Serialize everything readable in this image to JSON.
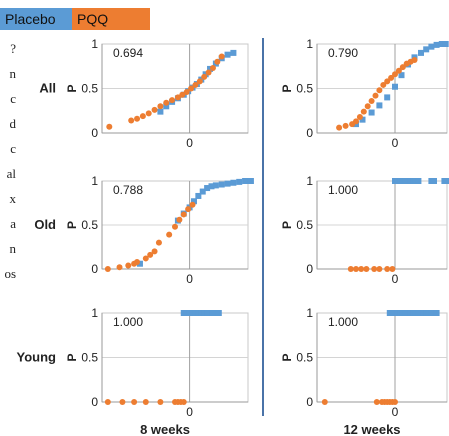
{
  "legend": {
    "series": [
      {
        "name": "Placebo",
        "color": "#5b9bd5"
      },
      {
        "name": "PQQ",
        "color": "#ed7d31"
      }
    ]
  },
  "background_text": [
    "?",
    "n",
    "c",
    "d",
    "c",
    "al",
    "x",
    "a",
    "n",
    "os"
  ],
  "chart_data": [
    {
      "type": "scatter",
      "id": "all-8",
      "row_label": "All",
      "col_label": "",
      "annotation": "0.694",
      "ylabel": "P",
      "yticks": [
        "0",
        "0.5",
        "1"
      ],
      "xtick": "0",
      "ylim": [
        0,
        1
      ],
      "xlim": [
        -60,
        40
      ],
      "series": [
        {
          "name": "Placebo",
          "color": "#5b9bd5",
          "x": [
            -20,
            -16,
            -12,
            -8,
            -4,
            -1,
            2,
            5,
            8,
            11,
            14,
            18,
            22,
            26,
            30
          ],
          "y": [
            0.24,
            0.3,
            0.35,
            0.39,
            0.43,
            0.47,
            0.51,
            0.55,
            0.6,
            0.66,
            0.72,
            0.78,
            0.84,
            0.88,
            0.9
          ]
        },
        {
          "name": "PQQ",
          "color": "#ed7d31",
          "x": [
            -55,
            -40,
            -36,
            -32,
            -28,
            -24,
            -20,
            -16,
            -12,
            -8,
            -5,
            -2,
            1,
            4,
            7,
            10,
            13,
            16,
            19,
            22
          ],
          "y": [
            0.07,
            0.14,
            0.16,
            0.19,
            0.22,
            0.26,
            0.3,
            0.34,
            0.37,
            0.4,
            0.43,
            0.46,
            0.5,
            0.54,
            0.58,
            0.63,
            0.68,
            0.73,
            0.8,
            0.86
          ]
        }
      ]
    },
    {
      "type": "scatter",
      "id": "all-12",
      "row_label": "",
      "col_label": "",
      "annotation": "0.790",
      "ylabel": "P",
      "yticks": [
        "0",
        "0.5",
        "1"
      ],
      "xtick": "0",
      "ylim": [
        0,
        1
      ],
      "xlim": [
        -60,
        40
      ],
      "series": [
        {
          "name": "Placebo",
          "color": "#5b9bd5",
          "x": [
            -30,
            -25,
            -18,
            -12,
            -6,
            0,
            5,
            10,
            15,
            20,
            24,
            28,
            32,
            36,
            39
          ],
          "y": [
            0.1,
            0.15,
            0.23,
            0.31,
            0.4,
            0.52,
            0.65,
            0.77,
            0.85,
            0.9,
            0.94,
            0.97,
            0.99,
            1,
            1
          ]
        },
        {
          "name": "PQQ",
          "color": "#ed7d31",
          "x": [
            -43,
            -38,
            -33,
            -30,
            -27,
            -24,
            -21,
            -18,
            -15,
            -12,
            -9,
            -6,
            -3,
            0,
            3,
            6,
            9,
            12,
            15
          ],
          "y": [
            0.06,
            0.08,
            0.1,
            0.13,
            0.18,
            0.24,
            0.3,
            0.36,
            0.42,
            0.48,
            0.54,
            0.58,
            0.62,
            0.66,
            0.7,
            0.74,
            0.78,
            0.8,
            0.82
          ]
        }
      ]
    },
    {
      "type": "scatter",
      "id": "old-8",
      "row_label": "Old",
      "col_label": "",
      "annotation": "0.788",
      "ylabel": "P",
      "yticks": [
        "0",
        "0.5",
        "1"
      ],
      "xtick": "0",
      "ylim": [
        0,
        1
      ],
      "xlim": [
        -60,
        40
      ],
      "series": [
        {
          "name": "Placebo",
          "color": "#5b9bd5",
          "x": [
            -34,
            -8,
            -4,
            0,
            3,
            6,
            9,
            12,
            15,
            18,
            22,
            26,
            30,
            34,
            38,
            42
          ],
          "y": [
            0.06,
            0.55,
            0.63,
            0.7,
            0.77,
            0.83,
            0.88,
            0.92,
            0.94,
            0.95,
            0.96,
            0.97,
            0.98,
            0.99,
            1,
            1
          ]
        },
        {
          "name": "PQQ",
          "color": "#ed7d31",
          "x": [
            -56,
            -48,
            -42,
            -38,
            -36,
            -30,
            -27,
            -24,
            -21,
            -14,
            -10,
            -7,
            -4,
            -1,
            2
          ],
          "y": [
            0,
            0.02,
            0.04,
            0.06,
            0.08,
            0.12,
            0.16,
            0.2,
            0.3,
            0.39,
            0.48,
            0.56,
            0.62,
            0.68,
            0.73
          ]
        }
      ]
    },
    {
      "type": "scatter",
      "id": "old-12",
      "row_label": "",
      "col_label": "",
      "annotation": "1.000",
      "ylabel": "P",
      "yticks": [
        "0",
        "0.5",
        "1"
      ],
      "xtick": "0",
      "ylim": [
        0,
        1
      ],
      "xlim": [
        -60,
        40
      ],
      "series": [
        {
          "name": "Placebo",
          "color": "#5b9bd5",
          "x": [
            0,
            2,
            4,
            6,
            8,
            10,
            12,
            14,
            16,
            18,
            28,
            30,
            38,
            40
          ],
          "y": [
            1,
            1,
            1,
            1,
            1,
            1,
            1,
            1,
            1,
            1,
            1,
            1,
            1,
            1
          ]
        },
        {
          "name": "PQQ",
          "color": "#ed7d31",
          "x": [
            -34,
            -30,
            -26,
            -22,
            -16,
            -12,
            -6,
            -2
          ],
          "y": [
            0,
            0,
            0,
            0,
            0,
            0,
            0,
            0
          ]
        }
      ]
    },
    {
      "type": "scatter",
      "id": "young-8",
      "row_label": "Young",
      "col_label": "8 weeks",
      "annotation": "1.000",
      "ylabel": "P",
      "yticks": [
        "0",
        "0.5",
        "1"
      ],
      "xtick": "0",
      "ylim": [
        0,
        1
      ],
      "xlim": [
        -60,
        40
      ],
      "series": [
        {
          "name": "Placebo",
          "color": "#5b9bd5",
          "x": [
            -4,
            -2,
            0,
            2,
            4,
            6,
            8,
            10,
            12,
            14,
            16,
            18,
            20
          ],
          "y": [
            1,
            1,
            1,
            1,
            1,
            1,
            1,
            1,
            1,
            1,
            1,
            1,
            1
          ]
        },
        {
          "name": "PQQ",
          "color": "#ed7d31",
          "x": [
            -56,
            -46,
            -38,
            -30,
            -20,
            -10,
            -8,
            -6,
            -4
          ],
          "y": [
            0,
            0,
            0,
            0,
            0,
            0,
            0,
            0,
            0
          ]
        }
      ]
    },
    {
      "type": "scatter",
      "id": "young-12",
      "row_label": "",
      "col_label": "12 weeks",
      "annotation": "1.000",
      "ylabel": "P",
      "yticks": [
        "0",
        "0.5",
        "1"
      ],
      "xtick": "0",
      "ylim": [
        0,
        1
      ],
      "xlim": [
        -60,
        40
      ],
      "series": [
        {
          "name": "Placebo",
          "color": "#5b9bd5",
          "x": [
            -4,
            -2,
            0,
            2,
            4,
            6,
            8,
            10,
            12,
            14,
            16,
            18,
            22,
            24,
            26,
            28,
            30,
            32
          ],
          "y": [
            1,
            1,
            1,
            1,
            1,
            1,
            1,
            1,
            1,
            1,
            1,
            1,
            1,
            1,
            1,
            1,
            1,
            1
          ]
        },
        {
          "name": "PQQ",
          "color": "#ed7d31",
          "x": [
            -54,
            -14,
            -10,
            -8,
            -6,
            -4,
            -2,
            0
          ],
          "y": [
            0,
            0,
            0,
            0,
            0,
            0,
            0,
            0
          ]
        }
      ]
    }
  ]
}
